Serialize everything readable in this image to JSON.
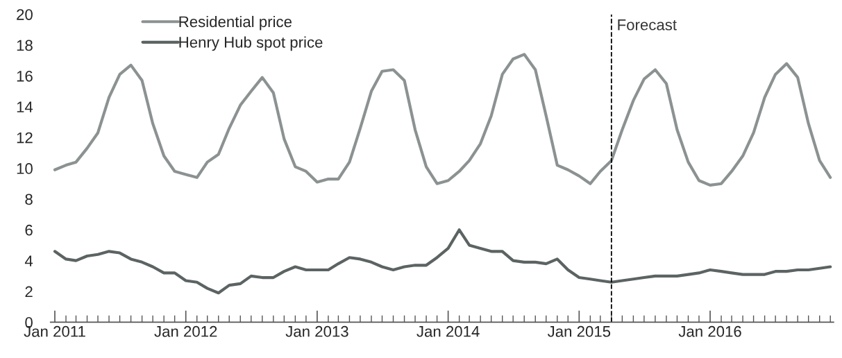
{
  "chart_data": {
    "type": "line",
    "x": [
      "2011-01",
      "2011-02",
      "2011-03",
      "2011-04",
      "2011-05",
      "2011-06",
      "2011-07",
      "2011-08",
      "2011-09",
      "2011-10",
      "2011-11",
      "2011-12",
      "2012-01",
      "2012-02",
      "2012-03",
      "2012-04",
      "2012-05",
      "2012-06",
      "2012-07",
      "2012-08",
      "2012-09",
      "2012-10",
      "2012-11",
      "2012-12",
      "2013-01",
      "2013-02",
      "2013-03",
      "2013-04",
      "2013-05",
      "2013-06",
      "2013-07",
      "2013-08",
      "2013-09",
      "2013-10",
      "2013-11",
      "2013-12",
      "2014-01",
      "2014-02",
      "2014-03",
      "2014-04",
      "2014-05",
      "2014-06",
      "2014-07",
      "2014-08",
      "2014-09",
      "2014-10",
      "2014-11",
      "2014-12",
      "2015-01",
      "2015-02",
      "2015-03",
      "2015-04",
      "2015-05",
      "2015-06",
      "2015-07",
      "2015-08",
      "2015-09",
      "2015-10",
      "2015-11",
      "2015-12",
      "2016-01",
      "2016-02",
      "2016-03",
      "2016-04",
      "2016-05",
      "2016-06",
      "2016-07",
      "2016-08",
      "2016-09",
      "2016-10",
      "2016-11",
      "2016-12"
    ],
    "series": [
      {
        "name": "Residential price",
        "color": "#8c9292",
        "values": [
          9.9,
          10.2,
          10.4,
          11.3,
          12.3,
          14.6,
          16.1,
          16.7,
          15.7,
          12.9,
          10.8,
          9.8,
          9.6,
          9.4,
          10.4,
          10.9,
          12.6,
          14.1,
          15.0,
          15.9,
          14.9,
          11.9,
          10.1,
          9.8,
          9.1,
          9.3,
          9.3,
          10.4,
          12.6,
          15.0,
          16.3,
          16.4,
          15.7,
          12.5,
          10.1,
          9.0,
          9.2,
          9.8,
          10.5,
          11.6,
          13.4,
          16.1,
          17.1,
          17.4,
          16.4,
          13.4,
          10.2,
          9.9,
          9.5,
          9.0,
          9.8,
          10.5,
          12.5,
          14.4,
          15.8,
          16.4,
          15.5,
          12.5,
          10.4,
          9.2,
          8.9,
          9.0,
          9.8,
          10.8,
          12.3,
          14.6,
          16.1,
          16.8,
          15.9,
          12.9,
          10.5,
          9.4
        ]
      },
      {
        "name": "Henry Hub spot price",
        "color": "#5c6363",
        "values": [
          4.6,
          4.1,
          4.0,
          4.3,
          4.4,
          4.6,
          4.5,
          4.1,
          3.9,
          3.6,
          3.2,
          3.2,
          2.7,
          2.6,
          2.2,
          1.9,
          2.4,
          2.5,
          3.0,
          2.9,
          2.9,
          3.3,
          3.6,
          3.4,
          3.4,
          3.4,
          3.8,
          4.2,
          4.1,
          3.9,
          3.6,
          3.4,
          3.6,
          3.7,
          3.7,
          4.2,
          4.8,
          6.0,
          5.0,
          4.8,
          4.6,
          4.6,
          4.0,
          3.9,
          3.9,
          3.8,
          4.1,
          3.4,
          2.9,
          2.8,
          2.7,
          2.6,
          2.7,
          2.8,
          2.9,
          3.0,
          3.0,
          3.0,
          3.1,
          3.2,
          3.4,
          3.3,
          3.2,
          3.1,
          3.1,
          3.1,
          3.3,
          3.3,
          3.4,
          3.4,
          3.5,
          3.6
        ]
      }
    ],
    "xlim": [
      "2010-12-20",
      "2016-12-10"
    ],
    "xticks": [
      {
        "value": "2011-01",
        "label": "Jan 2011"
      },
      {
        "value": "2012-01",
        "label": "Jan 2012"
      },
      {
        "value": "2013-01",
        "label": "Jan 2013"
      },
      {
        "value": "2014-01",
        "label": "Jan 2014"
      },
      {
        "value": "2015-01",
        "label": "Jan 2015"
      },
      {
        "value": "2016-01",
        "label": "Jan 2016"
      },
      {
        "value": "2011-02",
        "label": null
      },
      {
        "value": "2011-03",
        "label": null
      },
      {
        "value": "2011-04",
        "label": null
      },
      {
        "value": "2011-05",
        "label": null
      },
      {
        "value": "2011-06",
        "label": null
      },
      {
        "value": "2011-07",
        "label": null
      },
      {
        "value": "2011-08",
        "label": null
      },
      {
        "value": "2011-09",
        "label": null
      },
      {
        "value": "2011-10",
        "label": null
      },
      {
        "value": "2011-11",
        "label": null
      },
      {
        "value": "2011-12",
        "label": null
      },
      {
        "value": "2012-02",
        "label": null
      },
      {
        "value": "2012-03",
        "label": null
      },
      {
        "value": "2012-04",
        "label": null
      },
      {
        "value": "2012-05",
        "label": null
      },
      {
        "value": "2012-06",
        "label": null
      },
      {
        "value": "2012-07",
        "label": null
      },
      {
        "value": "2012-08",
        "label": null
      },
      {
        "value": "2012-09",
        "label": null
      },
      {
        "value": "2012-10",
        "label": null
      },
      {
        "value": "2012-11",
        "label": null
      },
      {
        "value": "2012-12",
        "label": null
      },
      {
        "value": "2013-02",
        "label": null
      },
      {
        "value": "2013-03",
        "label": null
      },
      {
        "value": "2013-04",
        "label": null
      },
      {
        "value": "2013-05",
        "label": null
      },
      {
        "value": "2013-06",
        "label": null
      },
      {
        "value": "2013-07",
        "label": null
      },
      {
        "value": "2013-08",
        "label": null
      },
      {
        "value": "2013-09",
        "label": null
      },
      {
        "value": "2013-10",
        "label": null
      },
      {
        "value": "2013-11",
        "label": null
      },
      {
        "value": "2013-12",
        "label": null
      },
      {
        "value": "2014-02",
        "label": null
      },
      {
        "value": "2014-03",
        "label": null
      },
      {
        "value": "2014-04",
        "label": null
      },
      {
        "value": "2014-05",
        "label": null
      },
      {
        "value": "2014-06",
        "label": null
      },
      {
        "value": "2014-07",
        "label": null
      },
      {
        "value": "2014-08",
        "label": null
      },
      {
        "value": "2014-09",
        "label": null
      },
      {
        "value": "2014-10",
        "label": null
      },
      {
        "value": "2014-11",
        "label": null
      },
      {
        "value": "2014-12",
        "label": null
      },
      {
        "value": "2015-02",
        "label": null
      },
      {
        "value": "2015-03",
        "label": null
      },
      {
        "value": "2015-04",
        "label": null
      },
      {
        "value": "2015-05",
        "label": null
      },
      {
        "value": "2015-06",
        "label": null
      },
      {
        "value": "2015-07",
        "label": null
      },
      {
        "value": "2015-08",
        "label": null
      },
      {
        "value": "2015-09",
        "label": null
      },
      {
        "value": "2015-10",
        "label": null
      },
      {
        "value": "2015-11",
        "label": null
      },
      {
        "value": "2015-12",
        "label": null
      },
      {
        "value": "2016-02",
        "label": null
      },
      {
        "value": "2016-03",
        "label": null
      },
      {
        "value": "2016-04",
        "label": null
      },
      {
        "value": "2016-05",
        "label": null
      },
      {
        "value": "2016-06",
        "label": null
      },
      {
        "value": "2016-07",
        "label": null
      },
      {
        "value": "2016-08",
        "label": null
      },
      {
        "value": "2016-09",
        "label": null
      },
      {
        "value": "2016-10",
        "label": null
      },
      {
        "value": "2016-11",
        "label": null
      },
      {
        "value": "2016-12",
        "label": null
      }
    ],
    "ylim": [
      0,
      20
    ],
    "yticks": [
      0,
      2,
      4,
      6,
      8,
      10,
      12,
      14,
      16,
      18,
      20
    ],
    "ref_lines": [
      {
        "axis": "x",
        "value": "2015-04",
        "label": "Forecast",
        "color": "#000000",
        "line_style": "dashed"
      }
    ],
    "legend": "top left",
    "grid": false,
    "marker": "none",
    "line_style": "solid"
  }
}
